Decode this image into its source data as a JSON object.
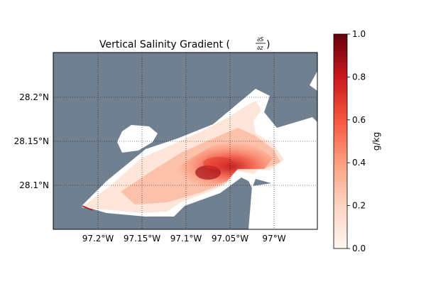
{
  "map": {
    "title_main": "Vertical Salinity Gradient (",
    "title_num": "∂S",
    "title_den": "∂z",
    "title_close": ")",
    "x_ticks": [
      "97.2°W",
      "97.15°W",
      "97.1°W",
      "97.05°W",
      "97°W"
    ],
    "y_ticks": [
      "28.2°N",
      "28.15°N",
      "28.1°N"
    ],
    "gridlines": "dotted",
    "land_color": "#708090",
    "water_masked_color": "#ffffff",
    "colormap": "Reds"
  },
  "colorbar": {
    "label": "g/kg",
    "min": 0.0,
    "max": 1.0,
    "ticks": [
      "0.0",
      "0.2",
      "0.4",
      "0.6",
      "0.8",
      "1.0"
    ],
    "color_low": "#fff5f0",
    "color_mid": "#fb6a4a",
    "color_high": "#67000d"
  },
  "field": {
    "max_value_region": "central channel near 97.08°W, 28.11°N",
    "typical_value": 0.15,
    "peak_value": 0.8
  }
}
